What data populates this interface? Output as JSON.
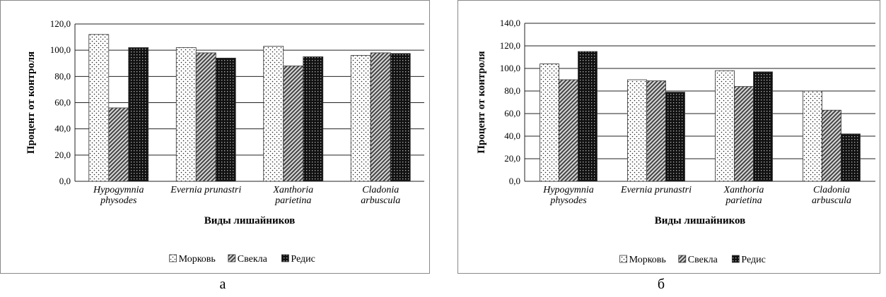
{
  "chart_data": [
    {
      "type": "bar",
      "panel_label": "а",
      "xlabel": "Виды лишайников",
      "ylabel": "Процент от контроля",
      "ylim": [
        0,
        120
      ],
      "ytick_step": 20,
      "yticks": [
        "0,0",
        "20,0",
        "40,0",
        "60,0",
        "80,0",
        "100,0",
        "120,0"
      ],
      "grid": true,
      "legend_position": "bottom",
      "categories": [
        [
          "Hypogymnia",
          "physodes"
        ],
        [
          "Evernia prunastri"
        ],
        [
          "Xanthoria",
          "parietina"
        ],
        [
          "Cladonia",
          "arbuscula"
        ]
      ],
      "series": [
        {
          "name": "Морковь",
          "pattern": "dots",
          "values": [
            112,
            102,
            103,
            96
          ]
        },
        {
          "name": "Свекла",
          "pattern": "diagonal",
          "values": [
            56,
            98,
            88,
            98
          ]
        },
        {
          "name": "Редис",
          "pattern": "dark-grid",
          "values": [
            102,
            94,
            95,
            97.5
          ]
        }
      ]
    },
    {
      "type": "bar",
      "panel_label": "б",
      "xlabel": "Виды лишайников",
      "ylabel": "Процент от контроля",
      "ylim": [
        0,
        140
      ],
      "ytick_step": 20,
      "yticks": [
        "0,0",
        "20,0",
        "40,0",
        "60,0",
        "80,0",
        "100,0",
        "120,0",
        "140,0"
      ],
      "grid": true,
      "legend_position": "bottom",
      "categories": [
        [
          "Hypogymnia",
          "physodes"
        ],
        [
          "Evernia prunastri"
        ],
        [
          "Xanthoria",
          "parietina"
        ],
        [
          "Cladonia",
          "arbuscula"
        ]
      ],
      "series": [
        {
          "name": "Морковь",
          "pattern": "dots",
          "values": [
            104,
            90,
            98,
            80
          ]
        },
        {
          "name": "Свекла",
          "pattern": "diagonal",
          "values": [
            90,
            89,
            84,
            63
          ]
        },
        {
          "name": "Редис",
          "pattern": "dark-grid",
          "values": [
            115,
            79,
            97,
            42
          ]
        }
      ]
    }
  ]
}
